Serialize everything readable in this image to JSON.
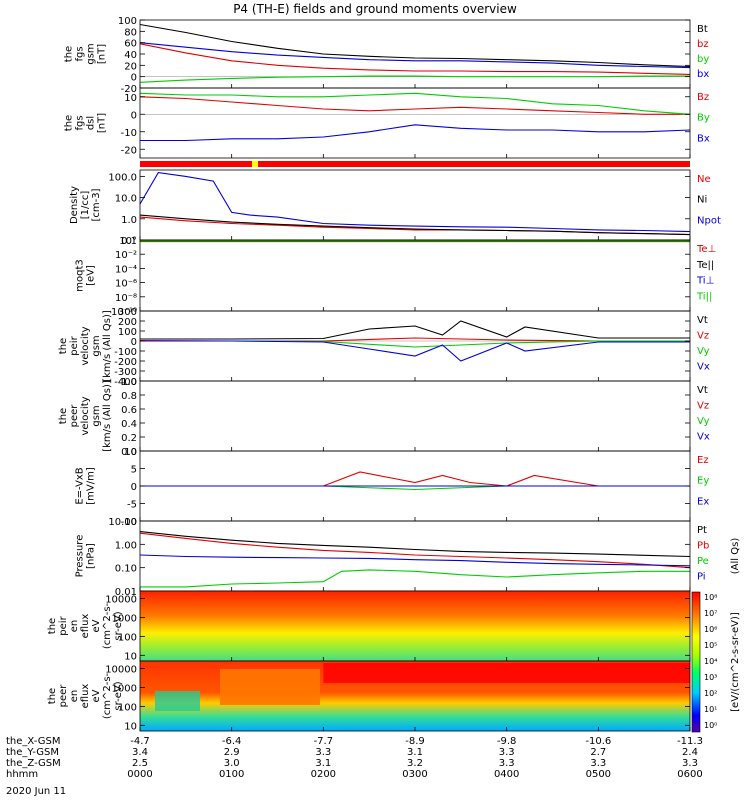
{
  "title": "P4 (TH-E) fields and ground moments overview",
  "colors": {
    "black": "#000000",
    "red": "#e00000",
    "green": "#00cc00",
    "blue": "#0000dd",
    "orange_bar": "#ff0000",
    "yellow_bar": "#ffff00"
  },
  "chart_data": [
    {
      "type": "line",
      "id": "fgs_gsm",
      "ylabel": [
        "the",
        "fgs",
        "gsm",
        "[nT]"
      ],
      "ylim": [
        -20,
        100
      ],
      "ticks": [
        -20,
        0,
        20,
        40,
        60,
        80,
        100
      ],
      "series": [
        {
          "name": "Bt",
          "color": "black",
          "x": [
            0,
            0.5,
            1,
            1.5,
            2,
            2.5,
            3,
            3.5,
            4,
            4.5,
            5,
            5.5,
            6
          ],
          "values": [
            92,
            78,
            62,
            50,
            40,
            36,
            33,
            32,
            30,
            28,
            25,
            21,
            18
          ]
        },
        {
          "name": "bz",
          "color": "red",
          "x": [
            0,
            0.5,
            1,
            1.5,
            2,
            2.5,
            3,
            3.5,
            4,
            4.5,
            5,
            5.5,
            6
          ],
          "values": [
            58,
            42,
            28,
            20,
            15,
            12,
            10,
            10,
            9,
            9,
            8,
            6,
            4
          ]
        },
        {
          "name": "by",
          "color": "green",
          "x": [
            0,
            0.5,
            1,
            1.5,
            2,
            2.5,
            3,
            3.5,
            4,
            4.5,
            5,
            5.5,
            6
          ],
          "values": [
            -10,
            -6,
            -3,
            -1,
            0,
            1,
            1,
            0,
            0,
            0,
            0,
            1,
            1
          ]
        },
        {
          "name": "bx",
          "color": "blue",
          "x": [
            0,
            0.5,
            1,
            1.5,
            2,
            2.5,
            3,
            3.5,
            4,
            4.5,
            5,
            5.5,
            6
          ],
          "values": [
            60,
            52,
            44,
            38,
            34,
            30,
            28,
            28,
            26,
            24,
            20,
            18,
            16
          ]
        }
      ]
    },
    {
      "type": "line",
      "id": "fgs_dsl",
      "ylabel": [
        "the",
        "fgs",
        "dsl",
        "[nT]"
      ],
      "ylim": [
        -25,
        15
      ],
      "ticks": [
        -20,
        -10,
        0,
        10
      ],
      "series": [
        {
          "name": "Bz",
          "color": "red",
          "x": [
            0,
            0.5,
            1,
            1.5,
            2,
            2.5,
            3,
            3.5,
            4,
            4.5,
            5,
            5.5,
            6
          ],
          "values": [
            10,
            9,
            7,
            5,
            3,
            2,
            3,
            4,
            3,
            2,
            1,
            0,
            0
          ]
        },
        {
          "name": "By",
          "color": "green",
          "x": [
            0,
            0.5,
            1,
            1.5,
            2,
            2.5,
            3,
            3.5,
            4,
            4.5,
            5,
            5.5,
            6
          ],
          "values": [
            12,
            11,
            11,
            10,
            10,
            11,
            12,
            10,
            9,
            6,
            5,
            2,
            0
          ]
        },
        {
          "name": "Bx",
          "color": "blue",
          "x": [
            0,
            0.5,
            1,
            1.5,
            2,
            2.5,
            3,
            3.5,
            4,
            4.5,
            5,
            5.5,
            6
          ],
          "values": [
            -15,
            -15,
            -14,
            -14,
            -13,
            -10,
            -6,
            -8,
            -9,
            -9,
            -10,
            -10,
            -9
          ]
        }
      ]
    },
    {
      "type": "line",
      "id": "density",
      "scale": "log",
      "ylabel": [
        "Density",
        "[1/cc]",
        "[cm-3]"
      ],
      "ylim": [
        0.1,
        200
      ],
      "ticks": [
        0.1,
        1.0,
        10.0,
        100.0
      ],
      "tick_labels": [
        "0.1",
        "1.0",
        "10.0",
        "100.0"
      ],
      "series": [
        {
          "name": "Ne",
          "color": "red",
          "x": [
            0,
            0.5,
            1,
            1.5,
            2,
            2.5,
            3,
            3.5,
            4,
            4.5,
            5,
            5.5,
            6
          ],
          "values": [
            1.2,
            0.8,
            0.6,
            0.5,
            0.4,
            0.35,
            0.3,
            0.3,
            0.28,
            0.26,
            0.22,
            0.2,
            0.18
          ]
        },
        {
          "name": "Ni",
          "color": "black",
          "x": [
            0,
            0.5,
            1,
            1.5,
            2,
            2.5,
            3,
            3.5,
            4,
            4.5,
            5,
            5.5,
            6
          ],
          "values": [
            1.5,
            1.0,
            0.7,
            0.55,
            0.45,
            0.38,
            0.33,
            0.3,
            0.28,
            0.26,
            0.22,
            0.2,
            0.18
          ]
        },
        {
          "name": "Npot",
          "color": "blue",
          "x": [
            0,
            0.2,
            0.5,
            0.8,
            1,
            1.2,
            1.5,
            2,
            2.5,
            3,
            3.5,
            4,
            4.5,
            5,
            5.5,
            6
          ],
          "values": [
            5,
            150,
            100,
            60,
            2,
            1.5,
            1.2,
            0.6,
            0.5,
            0.45,
            0.42,
            0.4,
            0.35,
            0.3,
            0.28,
            0.25
          ]
        }
      ]
    },
    {
      "type": "line",
      "id": "temperature",
      "scale": "log",
      "ylabel": [
        "moqt3",
        "[eV]"
      ],
      "ylim": [
        1e-10,
        1
      ],
      "ticks": [
        1,
        0.01,
        0.0001,
        1e-06,
        1e-08,
        1e-10
      ],
      "tick_labels": [
        "10°",
        "10⁻²",
        "10⁻⁴",
        "10⁻⁶",
        "10⁻⁸",
        "10⁻¹⁰"
      ],
      "series": [
        {
          "name": "Te⊥",
          "color": "red",
          "x": [
            0,
            6
          ],
          "values": [
            0.6,
            0.6
          ]
        },
        {
          "name": "Te||",
          "color": "black",
          "x": [
            0,
            6
          ],
          "values": [
            0.7,
            0.7
          ]
        },
        {
          "name": "Ti⊥",
          "color": "blue",
          "x": [
            0,
            6
          ],
          "values": [
            0.8,
            0.8
          ]
        },
        {
          "name": "Ti||",
          "color": "green",
          "x": [
            0,
            6
          ],
          "values": [
            0.75,
            0.75
          ]
        }
      ]
    },
    {
      "type": "line",
      "id": "peir_velocity",
      "ylabel": [
        "the",
        "peir",
        "velocity",
        "gsm",
        "[km/s (All Qs)]"
      ],
      "ylim": [
        -400,
        300
      ],
      "ticks": [
        -400,
        -300,
        -200,
        -100,
        0,
        100,
        200,
        300
      ],
      "series": [
        {
          "name": "Vt",
          "color": "black",
          "x": [
            0,
            1,
            2,
            2.5,
            3,
            3.3,
            3.5,
            4,
            4.2,
            5,
            6
          ],
          "values": [
            20,
            20,
            25,
            120,
            150,
            60,
            200,
            40,
            140,
            30,
            30
          ]
        },
        {
          "name": "Vz",
          "color": "red",
          "x": [
            0,
            1,
            2,
            3,
            4,
            5,
            6
          ],
          "values": [
            5,
            0,
            0,
            30,
            10,
            0,
            0
          ]
        },
        {
          "name": "Vy",
          "color": "green",
          "x": [
            0,
            1,
            2,
            3,
            4,
            5,
            6
          ],
          "values": [
            0,
            0,
            -5,
            -60,
            -20,
            0,
            0
          ]
        },
        {
          "name": "Vx",
          "color": "blue",
          "x": [
            0,
            1,
            2,
            2.5,
            3,
            3.3,
            3.5,
            4,
            4.2,
            5,
            6
          ],
          "values": [
            0,
            0,
            -10,
            -80,
            -150,
            -40,
            -200,
            -20,
            -100,
            -10,
            -10
          ]
        }
      ]
    },
    {
      "type": "line",
      "id": "peer_velocity",
      "ylabel": [
        "the",
        "peer",
        "velocity",
        "gsm",
        "[km/s (All Qs)]"
      ],
      "ylim": [
        0,
        1
      ],
      "ticks": [
        0,
        0.2,
        0.4,
        0.6,
        0.8,
        1.0
      ],
      "tick_labels": [
        "0.0",
        "0.2",
        "0.4",
        "0.6",
        "0.8",
        "1.0"
      ],
      "series": [
        {
          "name": "Vt",
          "color": "black",
          "x": [],
          "values": []
        },
        {
          "name": "Vz",
          "color": "red",
          "x": [],
          "values": []
        },
        {
          "name": "Vy",
          "color": "green",
          "x": [],
          "values": []
        },
        {
          "name": "Vx",
          "color": "blue",
          "x": [],
          "values": []
        }
      ]
    },
    {
      "type": "line",
      "id": "efield",
      "ylabel": [
        "E=-VxB",
        "[mV/m]"
      ],
      "ylim": [
        -10,
        10
      ],
      "ticks": [
        -10,
        -5,
        0,
        5,
        10
      ],
      "series": [
        {
          "name": "Ez",
          "color": "red",
          "x": [
            0,
            1,
            2,
            2.4,
            2.8,
            3,
            3.3,
            3.6,
            4,
            4.3,
            5,
            6
          ],
          "values": [
            0,
            0,
            0,
            4,
            2,
            1,
            3,
            1,
            0,
            3,
            0,
            0
          ]
        },
        {
          "name": "Ey",
          "color": "green",
          "x": [
            0,
            1,
            2,
            3,
            4,
            5,
            6
          ],
          "values": [
            0,
            0,
            0,
            -1,
            0,
            0,
            0
          ]
        },
        {
          "name": "Ex",
          "color": "blue",
          "x": [
            0,
            1,
            2,
            3,
            4,
            5,
            6
          ],
          "values": [
            0,
            0,
            0,
            0,
            0,
            0,
            0
          ]
        }
      ]
    },
    {
      "type": "line",
      "id": "pressure",
      "scale": "log",
      "ylabel": [
        "Pressure",
        "[nPa]"
      ],
      "ylim": [
        0.01,
        10
      ],
      "ticks": [
        0.01,
        0.1,
        1.0,
        10.0
      ],
      "tick_labels": [
        "0.01",
        "0.10",
        "1.00",
        "10.00"
      ],
      "side_label": "(All Qs)",
      "series": [
        {
          "name": "Pt",
          "color": "black",
          "x": [
            0,
            0.5,
            1,
            1.5,
            2,
            2.5,
            3,
            3.5,
            4,
            4.5,
            5,
            5.5,
            6
          ],
          "values": [
            3.5,
            2.2,
            1.5,
            1.1,
            0.9,
            0.75,
            0.6,
            0.5,
            0.45,
            0.42,
            0.38,
            0.34,
            0.3
          ]
        },
        {
          "name": "Pb",
          "color": "red",
          "x": [
            0,
            0.5,
            1,
            1.5,
            2,
            2.5,
            3,
            3.5,
            4,
            4.5,
            5,
            5.5,
            6
          ],
          "values": [
            3.0,
            1.8,
            1.1,
            0.75,
            0.55,
            0.45,
            0.35,
            0.3,
            0.26,
            0.22,
            0.18,
            0.14,
            0.1
          ]
        },
        {
          "name": "Pe",
          "color": "green",
          "x": [
            0,
            0.5,
            1,
            1.5,
            2,
            2.2,
            2.5,
            3,
            3.5,
            4,
            4.5,
            5,
            5.5,
            6
          ],
          "values": [
            0.015,
            0.015,
            0.02,
            0.022,
            0.025,
            0.07,
            0.08,
            0.07,
            0.05,
            0.04,
            0.05,
            0.06,
            0.07,
            0.07
          ]
        },
        {
          "name": "Pi",
          "color": "blue",
          "x": [
            0,
            0.5,
            1,
            1.5,
            2,
            2.5,
            3,
            3.5,
            4,
            4.5,
            5,
            5.5,
            6
          ],
          "values": [
            0.35,
            0.3,
            0.28,
            0.27,
            0.26,
            0.25,
            0.22,
            0.2,
            0.17,
            0.15,
            0.14,
            0.13,
            0.12
          ]
        }
      ]
    },
    {
      "type": "heatmap",
      "id": "peir_en_eflux",
      "ylabel": [
        "the",
        "peir",
        "en",
        "eflux",
        "eV",
        "(cm^2-s-",
        "sr-eV)"
      ],
      "scale": "log",
      "ylim": [
        5,
        25000
      ],
      "ticks": [
        10,
        100,
        1000,
        10000
      ],
      "tick_labels": [
        "10",
        "100",
        "1000",
        "10000"
      ]
    },
    {
      "type": "heatmap",
      "id": "peer_en_eflux",
      "ylabel": [
        "the",
        "peer",
        "en",
        "eflux",
        "eV",
        "(cm^2-s-",
        "sr-eV)"
      ],
      "scale": "log",
      "ylim": [
        5,
        25000
      ],
      "ticks": [
        10,
        100,
        1000,
        10000
      ],
      "tick_labels": [
        "10",
        "100",
        "1000",
        "10000"
      ]
    }
  ],
  "colorbar": {
    "label": "[eV/(cm^2-s-sr-eV)]",
    "side_label": "(All Qs)",
    "tick_labels": [
      "10⁸",
      "10⁷",
      "10⁶",
      "10⁵",
      "10⁴",
      "10³",
      "10²",
      "10¹",
      "10⁰"
    ]
  },
  "xaxis": {
    "rows": [
      {
        "label": "the_X-GSM",
        "values": [
          "-4.7",
          "-6.4",
          "-7.7",
          "-8.9",
          "-9.8",
          "-10.6",
          "-11.3"
        ]
      },
      {
        "label": "the_Y-GSM",
        "values": [
          "3.4",
          "2.9",
          "3.3",
          "3.1",
          "3.3",
          "2.7",
          "2.4"
        ]
      },
      {
        "label": "the_Z-GSM",
        "values": [
          "2.5",
          "3.0",
          "3.1",
          "3.2",
          "3.3",
          "3.3",
          "3.3"
        ]
      },
      {
        "label": "hhmm",
        "values": [
          "0000",
          "0100",
          "0200",
          "0300",
          "0400",
          "0500",
          "0600"
        ]
      }
    ],
    "date": "2020 Jun 11"
  }
}
